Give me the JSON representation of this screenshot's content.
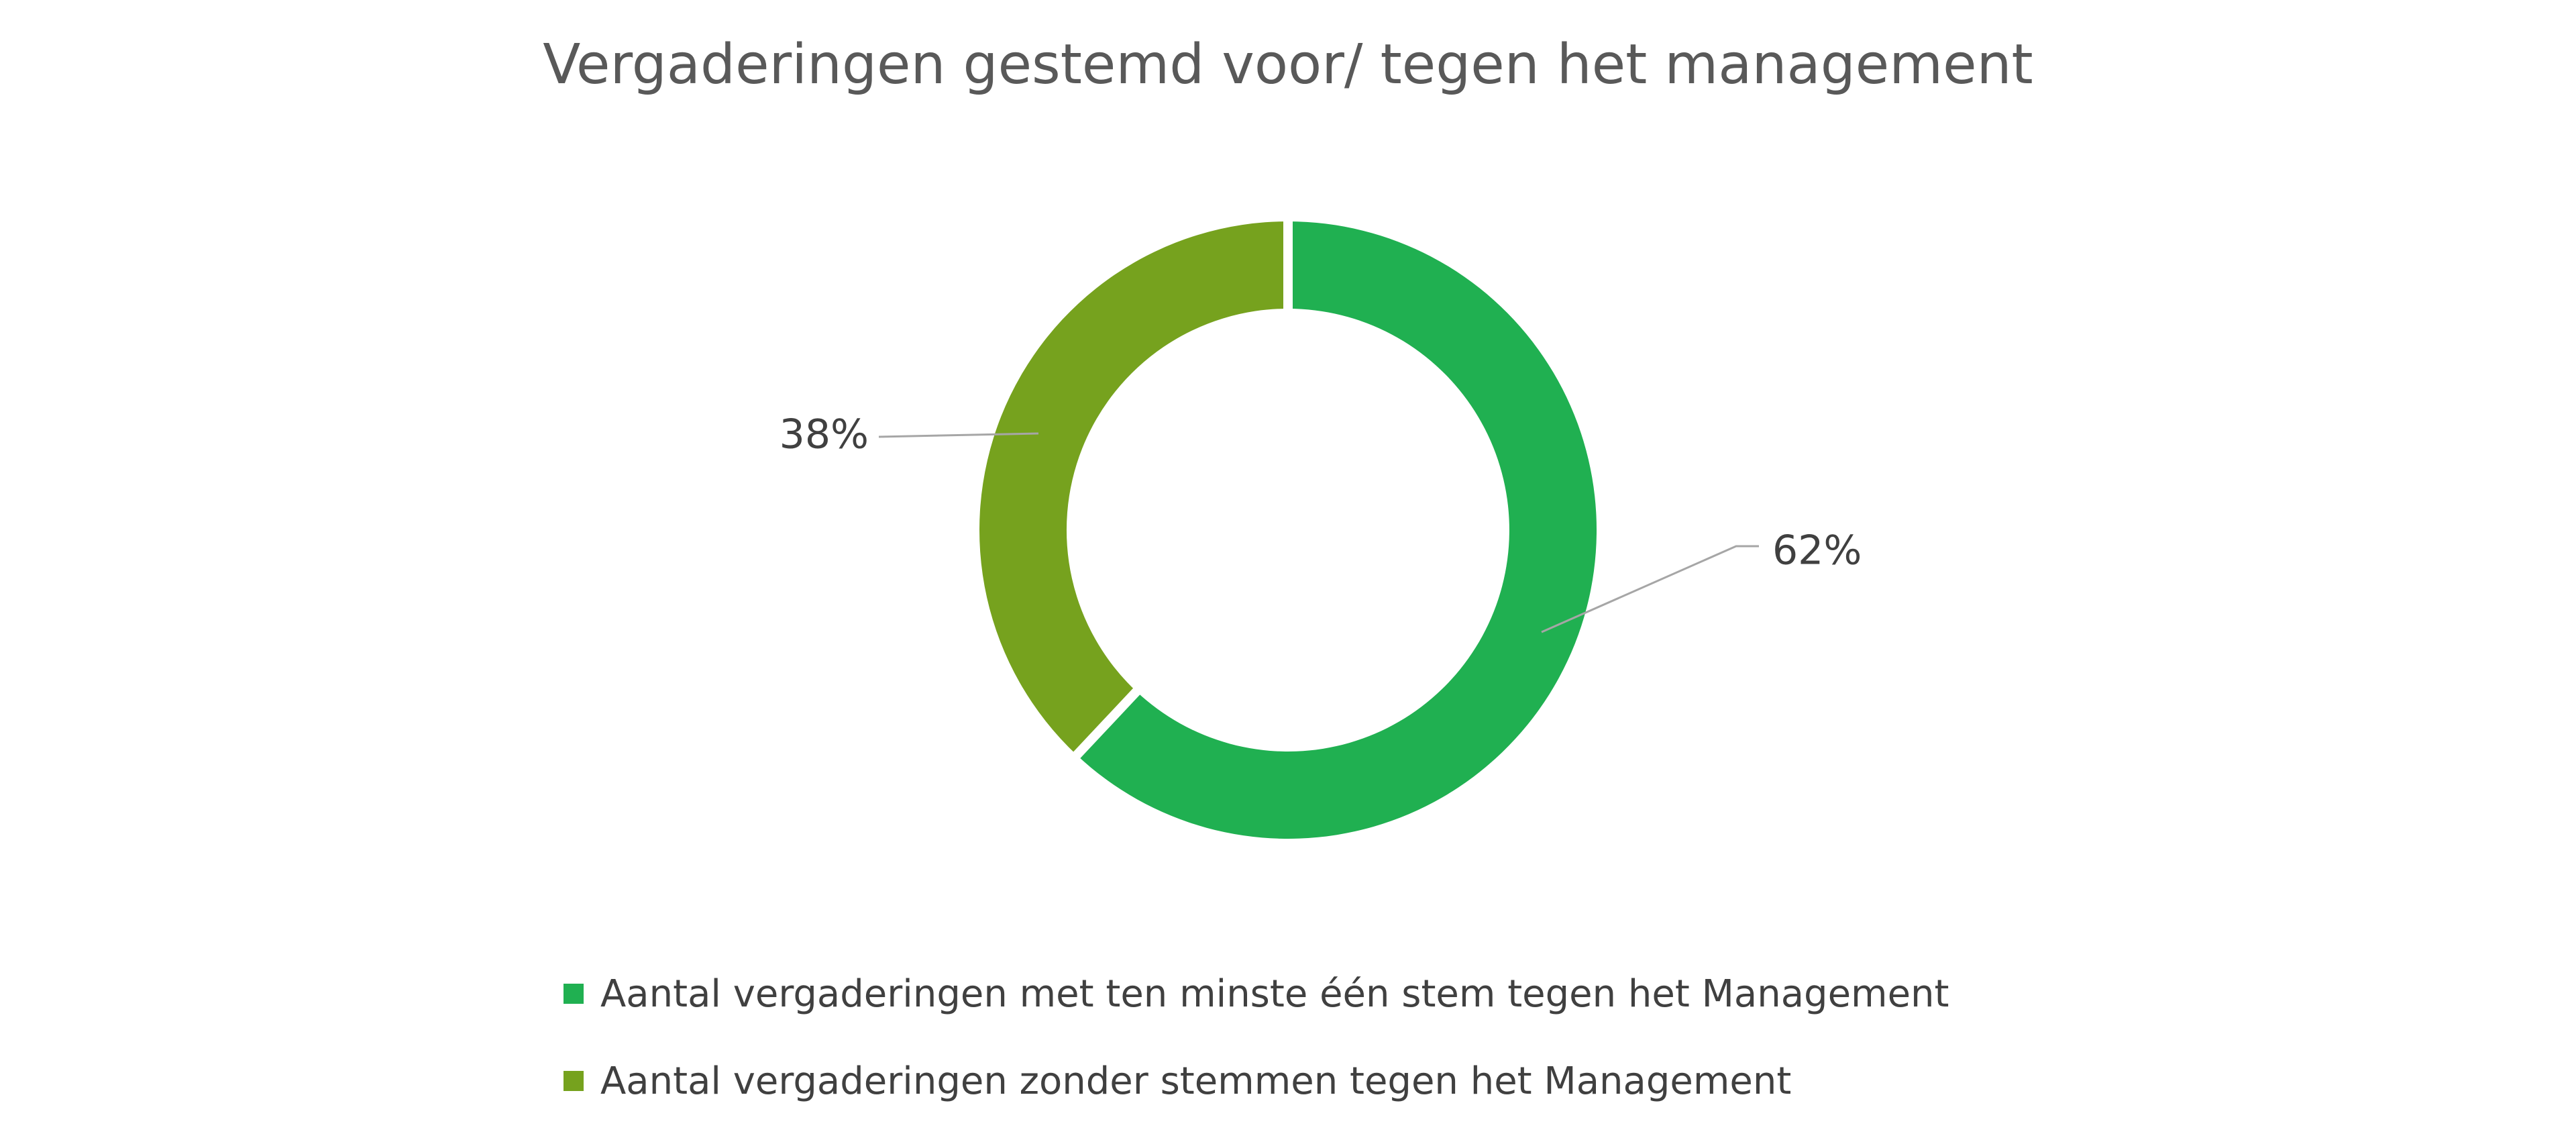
{
  "chart_data": {
    "type": "pie",
    "subtype": "doughnut",
    "title": "Vergaderingen gestemd voor/ tegen het management",
    "categories": [
      "Aantal vergaderingen met ten minste één stem tegen het Management",
      "Aantal vergaderingen zonder stemmen tegen het Management"
    ],
    "values": [
      62,
      38
    ],
    "data_labels": [
      "62%",
      "38%"
    ],
    "colors": [
      "#20B051",
      "#76A21E"
    ],
    "start_angle_deg": 0,
    "direction": "clockwise",
    "hole_ratio": 0.72,
    "legend_position": "bottom",
    "grid": false,
    "background": "#FFFFFF"
  },
  "styles": {
    "title_color": "#595959",
    "data_label_color": "#404040",
    "legend_text_color": "#404040",
    "leader_line_color": "#A6A6A6",
    "slice_separator_color": "#FFFFFF"
  }
}
